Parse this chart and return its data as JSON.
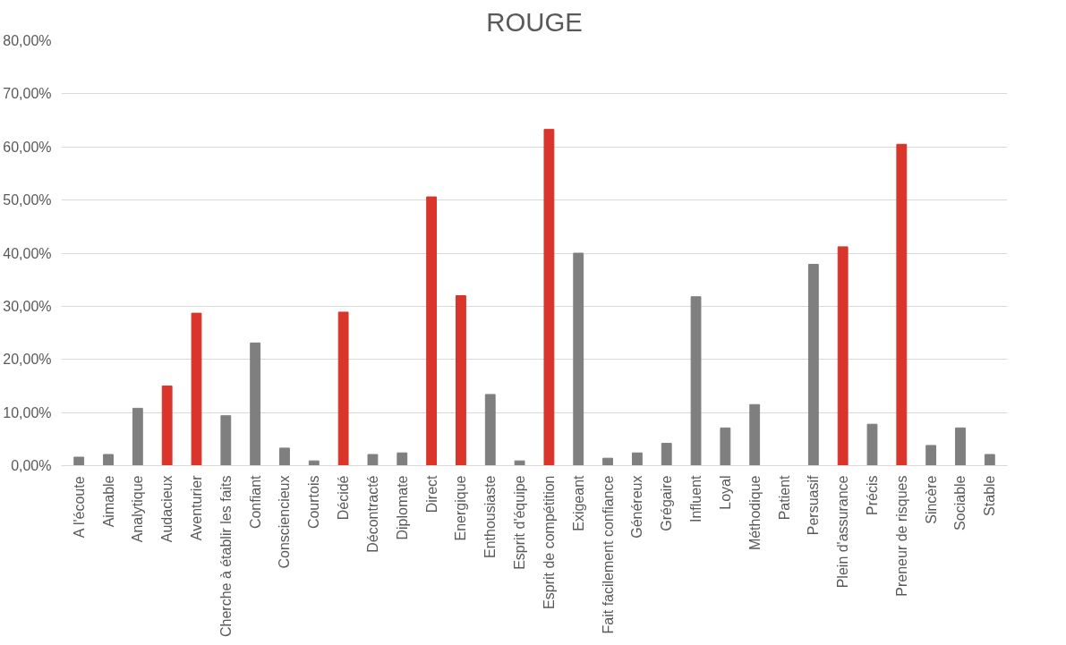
{
  "chart_data": {
    "type": "bar",
    "title": "ROUGE",
    "categories": [
      "A l'écoute",
      "Aimable",
      "Analytique",
      "Audacieux",
      "Aventurier",
      "Cherche à établir les faits",
      "Confiant",
      "Consciencieux",
      "Courtois",
      "Décidé",
      "Décontracté",
      "Diplomate",
      "Direct",
      "Energique",
      "Enthousiaste",
      "Esprit d'équipe",
      "Esprit de compétition",
      "Exigeant",
      "Fait facilement confiance",
      "Généreux",
      "Grégaire",
      "Influent",
      "Loyal",
      "Méthodique",
      "Patient",
      "Persuasif",
      "Plein d'assurance",
      "Précis",
      "Preneur de risques",
      "Sincère",
      "Sociable",
      "Stable"
    ],
    "values": [
      1.6,
      2.1,
      10.8,
      15.0,
      28.7,
      9.4,
      23.1,
      3.3,
      0.9,
      28.9,
      2.1,
      2.4,
      50.6,
      32.0,
      13.4,
      0.9,
      63.3,
      40.0,
      1.4,
      2.4,
      4.2,
      31.8,
      7.1,
      11.5,
      0,
      37.9,
      41.2,
      7.8,
      60.5,
      3.8,
      7.1,
      2.1
    ],
    "colors": [
      "#7f7f7f",
      "#7f7f7f",
      "#7f7f7f",
      "#d9352b",
      "#d9352b",
      "#7f7f7f",
      "#7f7f7f",
      "#7f7f7f",
      "#7f7f7f",
      "#d9352b",
      "#7f7f7f",
      "#7f7f7f",
      "#d9352b",
      "#d9352b",
      "#7f7f7f",
      "#7f7f7f",
      "#d9352b",
      "#7f7f7f",
      "#7f7f7f",
      "#7f7f7f",
      "#7f7f7f",
      "#7f7f7f",
      "#7f7f7f",
      "#7f7f7f",
      "#7f7f7f",
      "#7f7f7f",
      "#d9352b",
      "#7f7f7f",
      "#d9352b",
      "#7f7f7f",
      "#7f7f7f",
      "#7f7f7f"
    ],
    "ylim": [
      0,
      80
    ],
    "yticks": [
      {
        "value": 0,
        "label": "0,00%"
      },
      {
        "value": 10,
        "label": "10,00%"
      },
      {
        "value": 20,
        "label": "20,00%"
      },
      {
        "value": 30,
        "label": "30,00%"
      },
      {
        "value": 40,
        "label": "40,00%"
      },
      {
        "value": 50,
        "label": "50,00%"
      },
      {
        "value": 60,
        "label": "60,00%"
      },
      {
        "value": 70,
        "label": "70,00%"
      },
      {
        "value": 80,
        "label": "80,00%"
      }
    ],
    "grid": "y"
  }
}
